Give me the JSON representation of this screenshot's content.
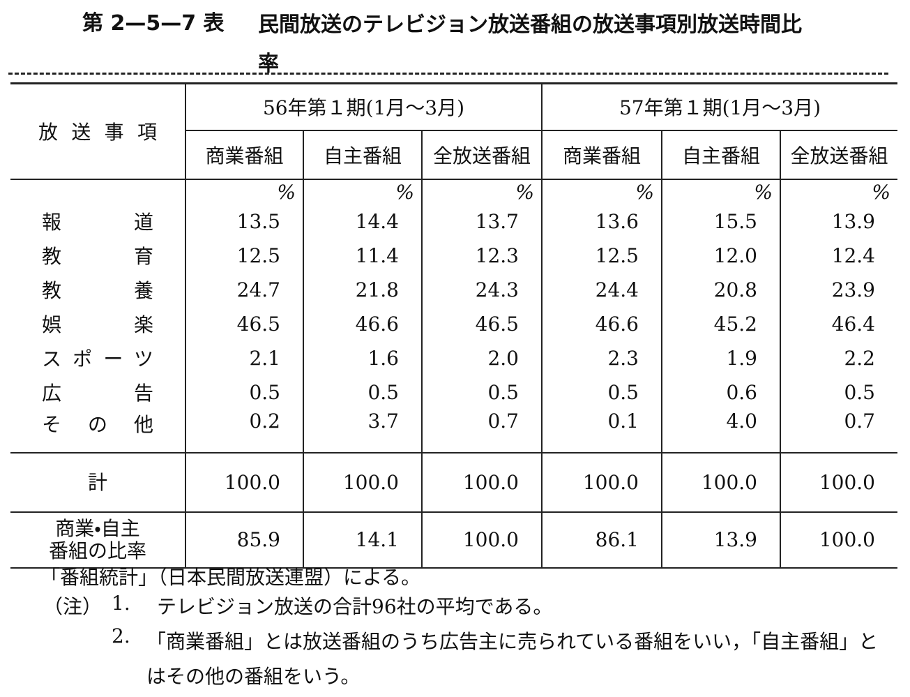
{
  "title": {
    "label": "第 2—5—7 表",
    "text": "民間放送のテレビジョン放送番組の放送事項別放送時間比率"
  },
  "table": {
    "row_header": "放送事項",
    "unit": "%",
    "groups": [
      {
        "period": "56年第１期(1月～3月)",
        "columns": [
          "商業番組",
          "自主番組",
          "全放送番組"
        ]
      },
      {
        "period": "57年第１期(1月～3月)",
        "columns": [
          "商業番組",
          "自主番組",
          "全放送番組"
        ]
      }
    ],
    "rows": [
      {
        "label": "報道",
        "values": [
          "13.5",
          "14.4",
          "13.7",
          "13.6",
          "15.5",
          "13.9"
        ]
      },
      {
        "label": "教育",
        "values": [
          "12.5",
          "11.4",
          "12.3",
          "12.5",
          "12.0",
          "12.4"
        ]
      },
      {
        "label": "教養",
        "values": [
          "24.7",
          "21.8",
          "24.3",
          "24.4",
          "20.8",
          "23.9"
        ]
      },
      {
        "label": "娯楽",
        "values": [
          "46.5",
          "46.6",
          "46.5",
          "46.6",
          "45.2",
          "46.4"
        ]
      },
      {
        "label": "スポーツ",
        "values": [
          "2.1",
          "1.6",
          "2.0",
          "2.3",
          "1.9",
          "2.2"
        ]
      },
      {
        "label": "広告",
        "values": [
          "0.5",
          "0.5",
          "0.5",
          "0.5",
          "0.6",
          "0.5"
        ]
      },
      {
        "label": "その他",
        "values": [
          "0.2",
          "3.7",
          "0.7",
          "0.1",
          "4.0",
          "0.7"
        ]
      }
    ],
    "total": {
      "label": "計",
      "values": [
        "100.0",
        "100.0",
        "100.0",
        "100.0",
        "100.0",
        "100.0"
      ]
    },
    "ratio": {
      "label": "商業・自主番組の比率",
      "values": [
        "85.9",
        "14.1",
        "100.0",
        "86.1",
        "13.9",
        "100.0"
      ]
    }
  },
  "source": "「番組統計」（日本民間放送連盟）による。",
  "notes": {
    "label": "（注）",
    "items": [
      {
        "number": "1.",
        "text": "テレビジョン放送の合計96社の平均である。"
      },
      {
        "number": "2.",
        "text": "「商業番組」とは放送番組のうち広告主に売られている番組をいい，「自主番組」とはその他の番組をいう。"
      }
    ]
  }
}
